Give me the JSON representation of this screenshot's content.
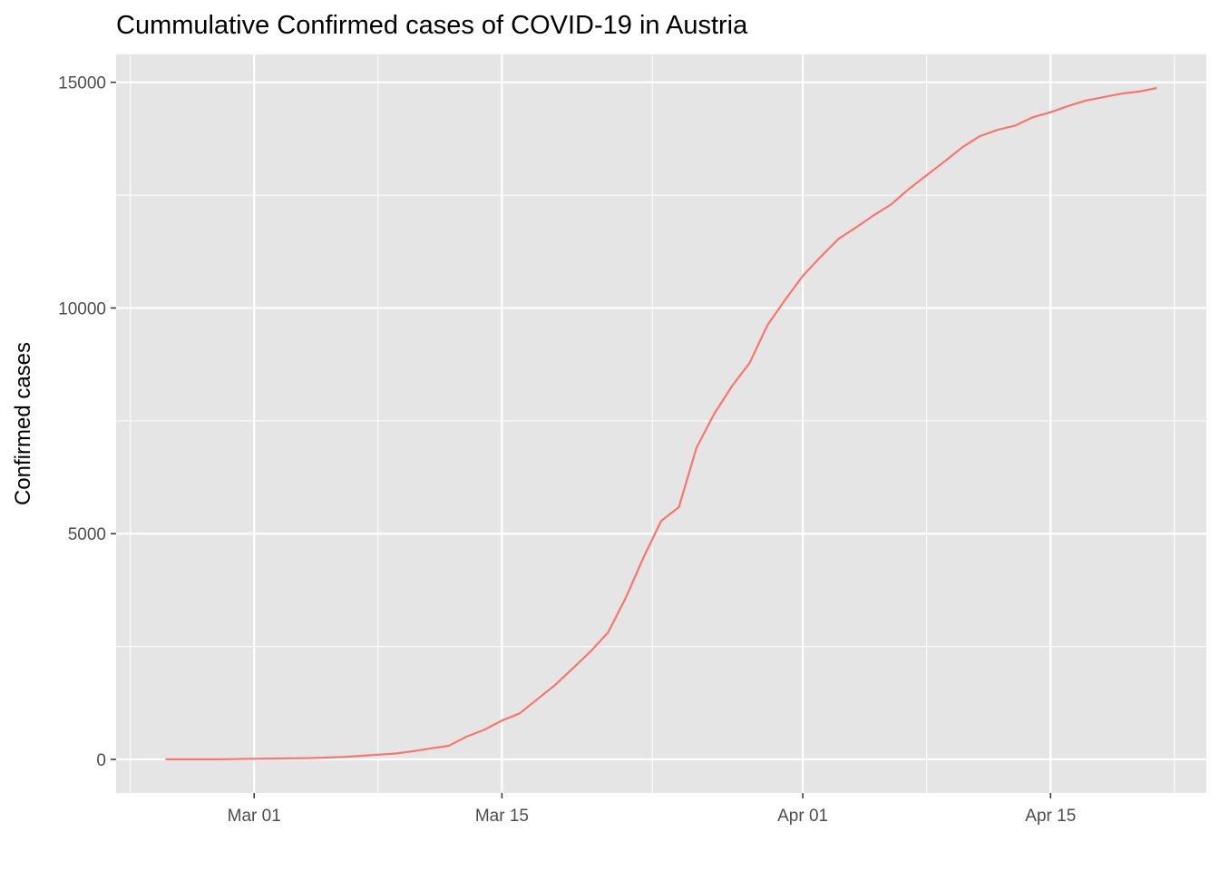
{
  "chart_data": {
    "type": "line",
    "title": "Cummulative Confirmed cases of COVID-19 in Austria",
    "xlabel": "",
    "ylabel": "Confirmed cases",
    "line_color": "#F8766D",
    "panel_background": "#E5E5E5",
    "grid": true,
    "ylim": [
      0,
      15000
    ],
    "y_ticks": [
      0,
      5000,
      10000,
      15000
    ],
    "y_tick_labels": [
      "0",
      "5000",
      "10000",
      "15000"
    ],
    "x_ticks": [
      "2020-03-01",
      "2020-03-15",
      "2020-04-01",
      "2020-04-15"
    ],
    "x_tick_labels": [
      "Mar 01",
      "Mar 15",
      "Apr 01",
      "Apr 15"
    ],
    "x": [
      "2020-02-25",
      "2020-02-26",
      "2020-02-27",
      "2020-02-28",
      "2020-02-29",
      "2020-03-01",
      "2020-03-02",
      "2020-03-03",
      "2020-03-04",
      "2020-03-05",
      "2020-03-06",
      "2020-03-07",
      "2020-03-08",
      "2020-03-09",
      "2020-03-10",
      "2020-03-11",
      "2020-03-12",
      "2020-03-13",
      "2020-03-14",
      "2020-03-15",
      "2020-03-16",
      "2020-03-17",
      "2020-03-18",
      "2020-03-19",
      "2020-03-20",
      "2020-03-21",
      "2020-03-22",
      "2020-03-23",
      "2020-03-24",
      "2020-03-25",
      "2020-03-26",
      "2020-03-27",
      "2020-03-28",
      "2020-03-29",
      "2020-03-30",
      "2020-03-31",
      "2020-04-01",
      "2020-04-02",
      "2020-04-03",
      "2020-04-04",
      "2020-04-05",
      "2020-04-06",
      "2020-04-07",
      "2020-04-08",
      "2020-04-09",
      "2020-04-10",
      "2020-04-11",
      "2020-04-12",
      "2020-04-13",
      "2020-04-14",
      "2020-04-15",
      "2020-04-16",
      "2020-04-17",
      "2020-04-18",
      "2020-04-19",
      "2020-04-20",
      "2020-04-21"
    ],
    "y": [
      2,
      2,
      3,
      3,
      9,
      14,
      18,
      24,
      29,
      41,
      55,
      79,
      104,
      131,
      182,
      246,
      302,
      504,
      655,
      860,
      1018,
      1332,
      1646,
      2013,
      2388,
      2814,
      3582,
      4474,
      5283,
      5588,
      6909,
      7657,
      8271,
      8788,
      9618,
      10180,
      10711,
      11129,
      11524,
      11781,
      12051,
      12297,
      12639,
      12942,
      13244,
      13555,
      13806,
      13945,
      14041,
      14226,
      14336,
      14476,
      14595,
      14671,
      14749,
      14795,
      14873
    ]
  }
}
